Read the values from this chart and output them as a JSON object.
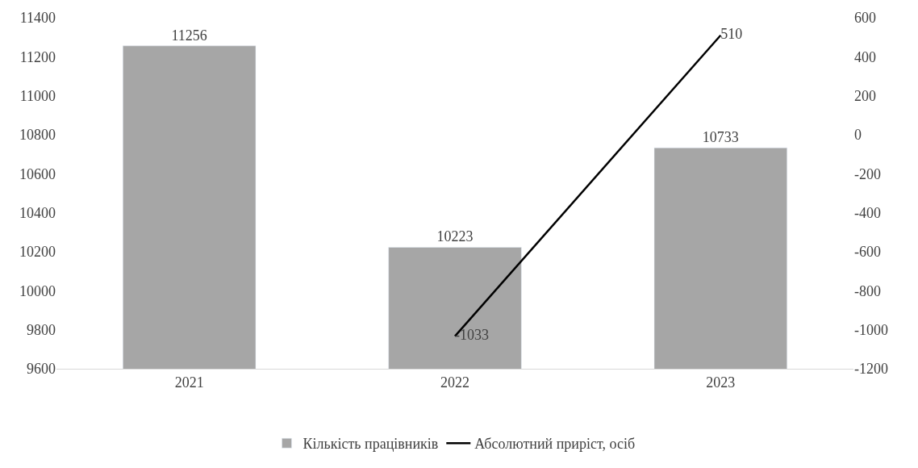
{
  "chart_data": {
    "type": "bar",
    "categories": [
      "2021",
      "2022",
      "2023"
    ],
    "series": [
      {
        "name": "Кількість працівників",
        "color": "#a6a6a6",
        "values": [
          11256,
          10223,
          10733
        ]
      },
      {
        "name": "Абсолютний приріст, осіб",
        "type": "line",
        "axis": "y2",
        "color": "#000000",
        "values": [
          null,
          -1033,
          510
        ]
      }
    ],
    "ylim": [
      9600,
      11400
    ],
    "yticks": [
      9600,
      9800,
      10000,
      10200,
      10400,
      10600,
      10800,
      11000,
      11200,
      11400
    ],
    "y2lim": [
      -1200,
      600
    ],
    "y2ticks": [
      -1200,
      -1000,
      -800,
      -600,
      -400,
      -200,
      0,
      200,
      400,
      600
    ],
    "data_labels": true,
    "legend": "bottom",
    "marker": "none",
    "line_style": "solid"
  }
}
